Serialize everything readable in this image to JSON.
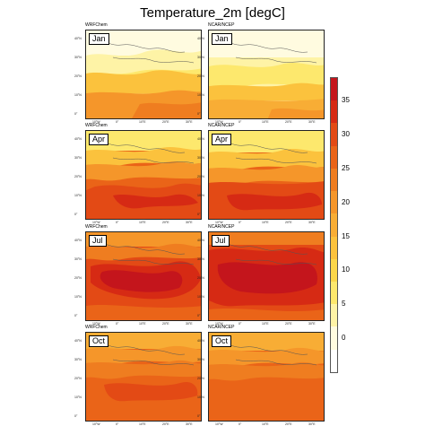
{
  "title": "Temperature_2m [degC]",
  "colorbar": {
    "labels": [
      "35",
      "30",
      "25",
      "20",
      "15",
      "10",
      "5",
      "0"
    ],
    "colors": [
      "#c4151c",
      "#d62a14",
      "#e34a15",
      "#ea6418",
      "#ef7d20",
      "#f5962a",
      "#f8ad35",
      "#fbc23d",
      "#fbd74a",
      "#fde86d",
      "#fef3a6",
      "#fffbe0",
      "#ffffff"
    ]
  },
  "axes": {
    "lat_ticks": [
      "40°N",
      "30°N",
      "20°N",
      "10°N",
      "0°"
    ],
    "lon_ticks": [
      "10°W",
      "0°",
      "10°E",
      "20°E",
      "30°E"
    ]
  },
  "panels": [
    {
      "source": "WRFChem",
      "month": "Jan"
    },
    {
      "source": "NCAR/NCEP",
      "month": "Jan"
    },
    {
      "source": "WRFChem",
      "month": "Apr"
    },
    {
      "source": "NCAR/NCEP",
      "month": "Apr"
    },
    {
      "source": "WRFChem",
      "month": "Jul"
    },
    {
      "source": "NCAR/NCEP",
      "month": "Jul"
    },
    {
      "source": "WRFChem",
      "month": "Oct"
    },
    {
      "source": "NCAR/NCEP",
      "month": "Oct"
    }
  ]
}
